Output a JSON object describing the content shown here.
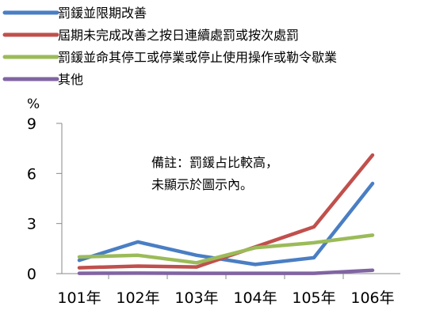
{
  "chart_data": {
    "type": "line",
    "unit_label": "%",
    "categories": [
      "101年",
      "102年",
      "103年",
      "104年",
      "105年",
      "106年"
    ],
    "ylim": [
      0,
      9
    ],
    "yticks": [
      0,
      3,
      6,
      9
    ],
    "grid": false,
    "legend_position": "top-left",
    "note_lines": [
      "備註：罰鍰占比較高，",
      "未顯示於圖示內。"
    ],
    "series": [
      {
        "name": "罰鍰並限期改善",
        "color": "#4a7ec4",
        "values": [
          0.8,
          1.9,
          1.1,
          0.55,
          0.95,
          5.4
        ]
      },
      {
        "name": "屆期未完成改善之按日連續處罰或按次處罰",
        "color": "#c0504d",
        "values": [
          0.35,
          0.45,
          0.4,
          1.6,
          2.8,
          7.1
        ]
      },
      {
        "name": "罰鍰並命其停工或停業或停止使用操作或勒令歇業",
        "color": "#9bbb59",
        "values": [
          1.0,
          1.1,
          0.65,
          1.55,
          1.85,
          2.3
        ]
      },
      {
        "name": "其他",
        "color": "#8064a2",
        "values": [
          0.02,
          0.03,
          0.02,
          0.02,
          0.02,
          0.2
        ]
      }
    ]
  }
}
